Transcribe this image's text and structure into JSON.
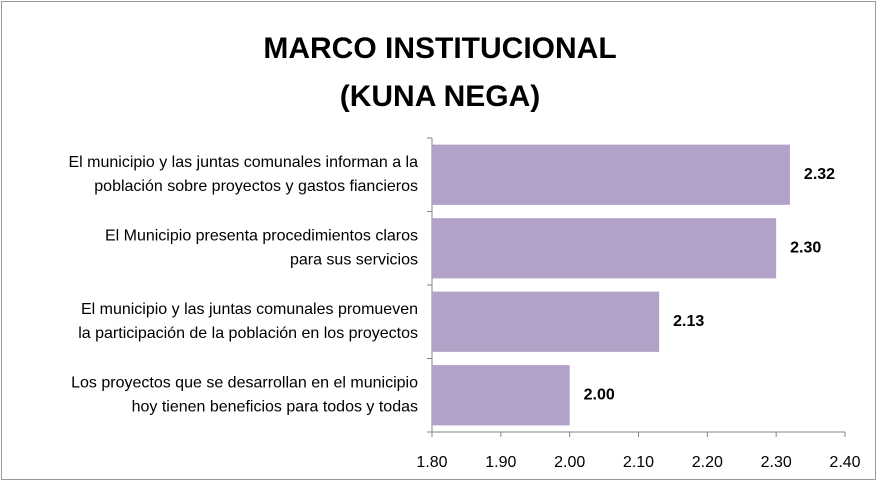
{
  "chart_data": {
    "type": "bar",
    "orientation": "horizontal",
    "title": [
      "MARCO INSTITUCIONAL",
      "(KUNA NEGA)"
    ],
    "categories": [
      [
        "El municipio y las juntas comunales informan a la",
        "población sobre proyectos y gastos fiancieros"
      ],
      [
        "El Municipio presenta procedimientos claros",
        "para sus servicios"
      ],
      [
        "El municipio y las juntas comunales promueven",
        "la participación de la población en los proyectos"
      ],
      [
        "Los proyectos que se desarrollan en el municipio",
        "hoy tienen beneficios para todos y todas"
      ]
    ],
    "values": [
      2.32,
      2.3,
      2.13,
      2.0
    ],
    "value_labels": [
      "2.32",
      "2.30",
      "2.13",
      "2.00"
    ],
    "color": "#b3a2c7",
    "xlim": [
      1.8,
      2.4
    ],
    "xticks": [
      {
        "value": 1.8,
        "label": "1.80"
      },
      {
        "value": 1.9,
        "label": "1.90"
      },
      {
        "value": 2.0,
        "label": "2.00"
      },
      {
        "value": 2.1,
        "label": "2.10"
      },
      {
        "value": 2.2,
        "label": "2.20"
      },
      {
        "value": 2.3,
        "label": "2.30"
      },
      {
        "value": 2.4,
        "label": "2.40"
      }
    ],
    "grid": false
  }
}
